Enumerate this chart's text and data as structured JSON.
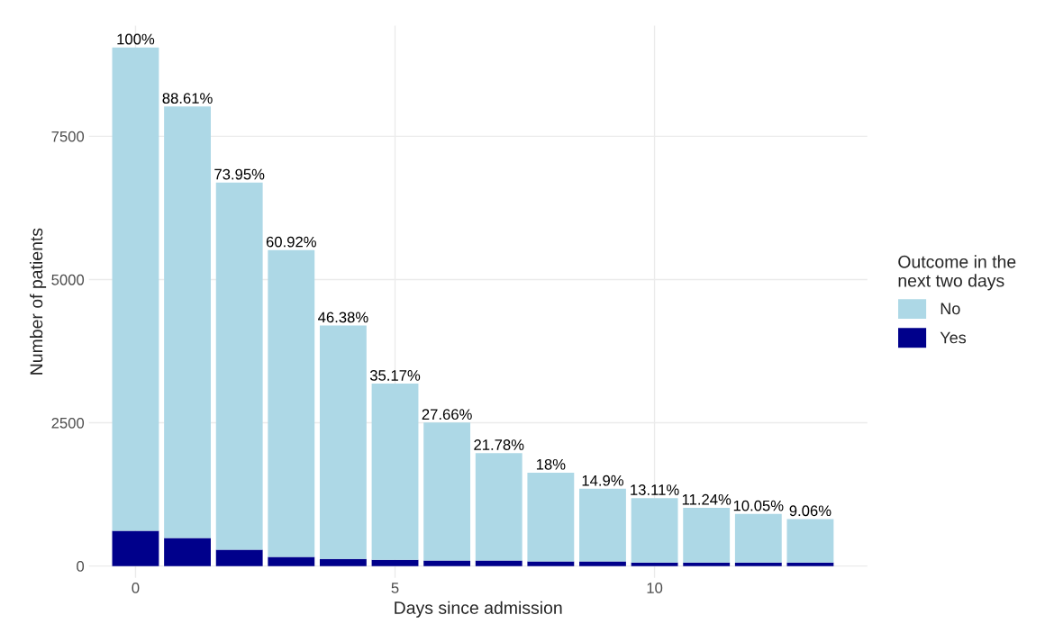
{
  "chart_data": {
    "type": "bar",
    "stacked": true,
    "xlabel": "Days since admission",
    "ylabel": "Number of patients",
    "legend_title": "Outcome in the\nnext two days",
    "x": [
      0,
      1,
      2,
      3,
      4,
      5,
      6,
      7,
      8,
      9,
      10,
      11,
      12,
      13
    ],
    "series": [
      {
        "name": "Yes",
        "color": "#00008b",
        "values": [
          616,
          490,
          284,
          160,
          126,
          110,
          95,
          95,
          80,
          80,
          60,
          60,
          60,
          60
        ]
      },
      {
        "name": "No",
        "color": "#add8e6",
        "values": [
          8434,
          7529,
          6408,
          5353,
          4071,
          3073,
          2408,
          1876,
          1549,
          1268,
          1126,
          957,
          849,
          760
        ]
      }
    ],
    "annotations": [
      {
        "text": "100%",
        "x": 0,
        "y": 9050
      },
      {
        "text": "88.61%",
        "x": 1,
        "y": 8019
      },
      {
        "text": "73.95%",
        "x": 2,
        "y": 6692
      },
      {
        "text": "60.92%",
        "x": 3,
        "y": 5513
      },
      {
        "text": "46.38%",
        "x": 4,
        "y": 4197
      },
      {
        "text": "35.17%",
        "x": 5,
        "y": 3183
      },
      {
        "text": "27.66%",
        "x": 6,
        "y": 2503
      },
      {
        "text": "21.78%",
        "x": 7,
        "y": 1971
      },
      {
        "text": "18%",
        "x": 8,
        "y": 1629
      },
      {
        "text": "14.9%",
        "x": 9,
        "y": 1348
      },
      {
        "text": "13.11%",
        "x": 10,
        "y": 1186
      },
      {
        "text": "11.24%",
        "x": 11,
        "y": 1017
      },
      {
        "text": "10.05%",
        "x": 12,
        "y": 909
      },
      {
        "text": "9.06%",
        "x": 13,
        "y": 820
      }
    ],
    "xlim": [
      -0.9,
      14.1
    ],
    "xticks": [
      0,
      5,
      10
    ],
    "ylim": [
      -205,
      9430
    ],
    "yticks": [
      0,
      2500,
      5000,
      7500
    ],
    "grid": true,
    "legend": "right"
  }
}
